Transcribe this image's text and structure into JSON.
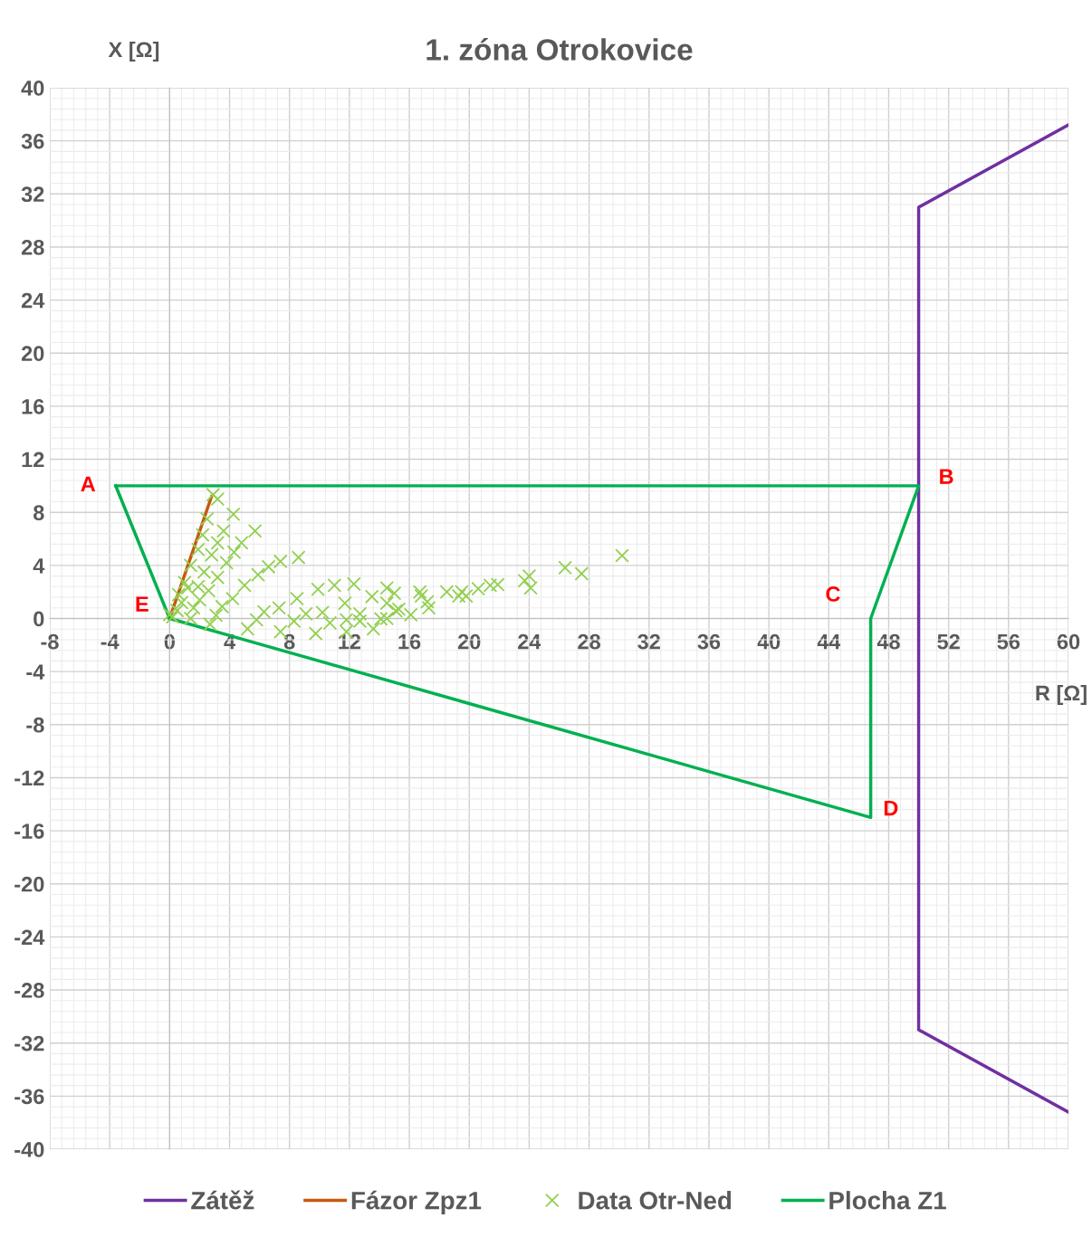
{
  "chart_data": {
    "type": "line",
    "title": "1. zóna Otrokovice",
    "xlabel": "R [Ω]",
    "ylabel": "X [Ω]",
    "xlim": [
      -8,
      60
    ],
    "xticks": [
      -8,
      -4,
      0,
      4,
      8,
      12,
      16,
      20,
      24,
      28,
      32,
      36,
      40,
      44,
      48,
      52,
      56,
      60
    ],
    "ylim": [
      -40,
      40
    ],
    "yticks": [
      -40,
      -36,
      -32,
      -28,
      -24,
      -20,
      -16,
      -12,
      -8,
      -4,
      0,
      4,
      8,
      12,
      16,
      20,
      24,
      28,
      32,
      36,
      40
    ],
    "grid": true,
    "legend": "bottom",
    "series": [
      {
        "name": "Zátěž",
        "color": "#7030a0",
        "x": [
          60,
          50,
          50,
          60
        ],
        "values": [
          37.2,
          31,
          -31,
          -37.2
        ]
      },
      {
        "name": "Fázor Zpz1",
        "color": "#c55a11",
        "x": [
          0,
          2.8
        ],
        "values": [
          0,
          9.2
        ]
      },
      {
        "name": "Data Otr-Ned",
        "type": "scatter",
        "marker": "cross",
        "color": "#92d050",
        "x": [
          2.9,
          3.2,
          4.25,
          2.5,
          3.6,
          5.7,
          2.2,
          3.2,
          4.8,
          1.9,
          4.3,
          2.8,
          7.4,
          8.6,
          6.6,
          1.4,
          3.8,
          2.3,
          5.9,
          3.2,
          1.0,
          5.0,
          1.9,
          2.6,
          9.9,
          11.0,
          12.3,
          14.5,
          15.0,
          13.5,
          0.6,
          2.0,
          4.2,
          8.5,
          11.7,
          14.5,
          3.5,
          1.6,
          7.3,
          6.3,
          9.1,
          10.2,
          12.7,
          15.1,
          3.1,
          1.4,
          5.8,
          8.3,
          11.8,
          14.5,
          10.7,
          12.7,
          14.1,
          2.7,
          5.2,
          7.4,
          9.75,
          11.8,
          13.6,
          0.2,
          30.2,
          26.4,
          27.5,
          24.0,
          23.7,
          24.1,
          21.9,
          21.4,
          20.6,
          19.5,
          19.8,
          19.3,
          18.5,
          16.7,
          16.8,
          17.2,
          17.3,
          16.1,
          15.3,
          0.5,
          0.8,
          1.2,
          0.0
        ],
        "values": [
          9.33,
          9.0,
          7.86,
          7.5,
          6.6,
          6.6,
          6.3,
          5.7,
          5.7,
          5.2,
          5.0,
          4.8,
          4.3,
          4.6,
          3.9,
          4.0,
          4.2,
          3.5,
          3.3,
          3.1,
          2.7,
          2.5,
          2.4,
          2.1,
          2.2,
          2.5,
          2.6,
          2.3,
          1.9,
          1.65,
          1.8,
          1.4,
          1.5,
          1.5,
          1.15,
          1.15,
          0.9,
          0.8,
          0.8,
          0.5,
          0.35,
          0.46,
          0.35,
          0.58,
          0.24,
          0.0,
          -0.1,
          -0.2,
          -0.1,
          0.0,
          -0.33,
          -0.2,
          -0.03,
          -0.44,
          -0.78,
          -1.0,
          -1.13,
          -1.0,
          -0.78,
          0.12,
          4.74,
          3.83,
          3.38,
          3.2,
          2.85,
          2.3,
          2.56,
          2.5,
          2.24,
          2.0,
          1.7,
          1.7,
          2.0,
          2.0,
          1.7,
          1.26,
          0.8,
          0.28,
          0.7,
          0.6,
          1.2,
          2.3,
          0.3
        ]
      },
      {
        "name": "Plocha Z1",
        "color": "#00b050",
        "x": [
          -3.6,
          50,
          46.8,
          46.8,
          0
        ],
        "values": [
          10,
          10,
          0,
          -15,
          0
        ]
      },
      {
        "color": "#00b050",
        "x": [
          0,
          -3.6
        ],
        "values": [
          0,
          10
        ]
      }
    ],
    "annotations": [
      {
        "text": "A",
        "x": -3.6,
        "y": 10
      },
      {
        "text": "B",
        "x": 50,
        "y": 10
      },
      {
        "text": "C",
        "x": 46.8,
        "y": 0
      },
      {
        "text": "D",
        "x": 46.8,
        "y": -15
      },
      {
        "text": "E",
        "x": 0,
        "y": 0
      }
    ]
  }
}
